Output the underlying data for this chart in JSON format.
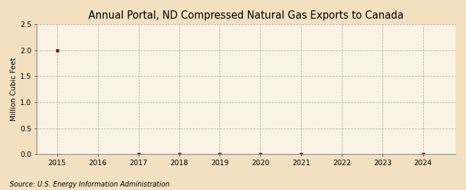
{
  "title": "Annual Portal, ND Compressed Natural Gas Exports to Canada",
  "ylabel": "Million Cubic Feet",
  "source": "Source: U.S. Energy Information Administration",
  "background_color": "#f2e0c0",
  "plot_bg_color": "#faf3e3",
  "x_years": [
    2015,
    2016,
    2017,
    2018,
    2019,
    2020,
    2021,
    2022,
    2023,
    2024
  ],
  "y_values": [
    2.0,
    null,
    0.0,
    0.0,
    0.0,
    0.0,
    0.0,
    null,
    null,
    0.0
  ],
  "xlim": [
    2014.5,
    2024.8
  ],
  "ylim": [
    0,
    2.5
  ],
  "yticks": [
    0.0,
    0.5,
    1.0,
    1.5,
    2.0,
    2.5
  ],
  "xticks": [
    2015,
    2016,
    2017,
    2018,
    2019,
    2020,
    2021,
    2022,
    2023,
    2024
  ],
  "line_color": "#8b1a1a",
  "marker_color": "#8b1a1a",
  "grid_color": "#999999",
  "title_fontsize": 10.5,
  "label_fontsize": 7.5,
  "tick_fontsize": 7.5,
  "source_fontsize": 7
}
